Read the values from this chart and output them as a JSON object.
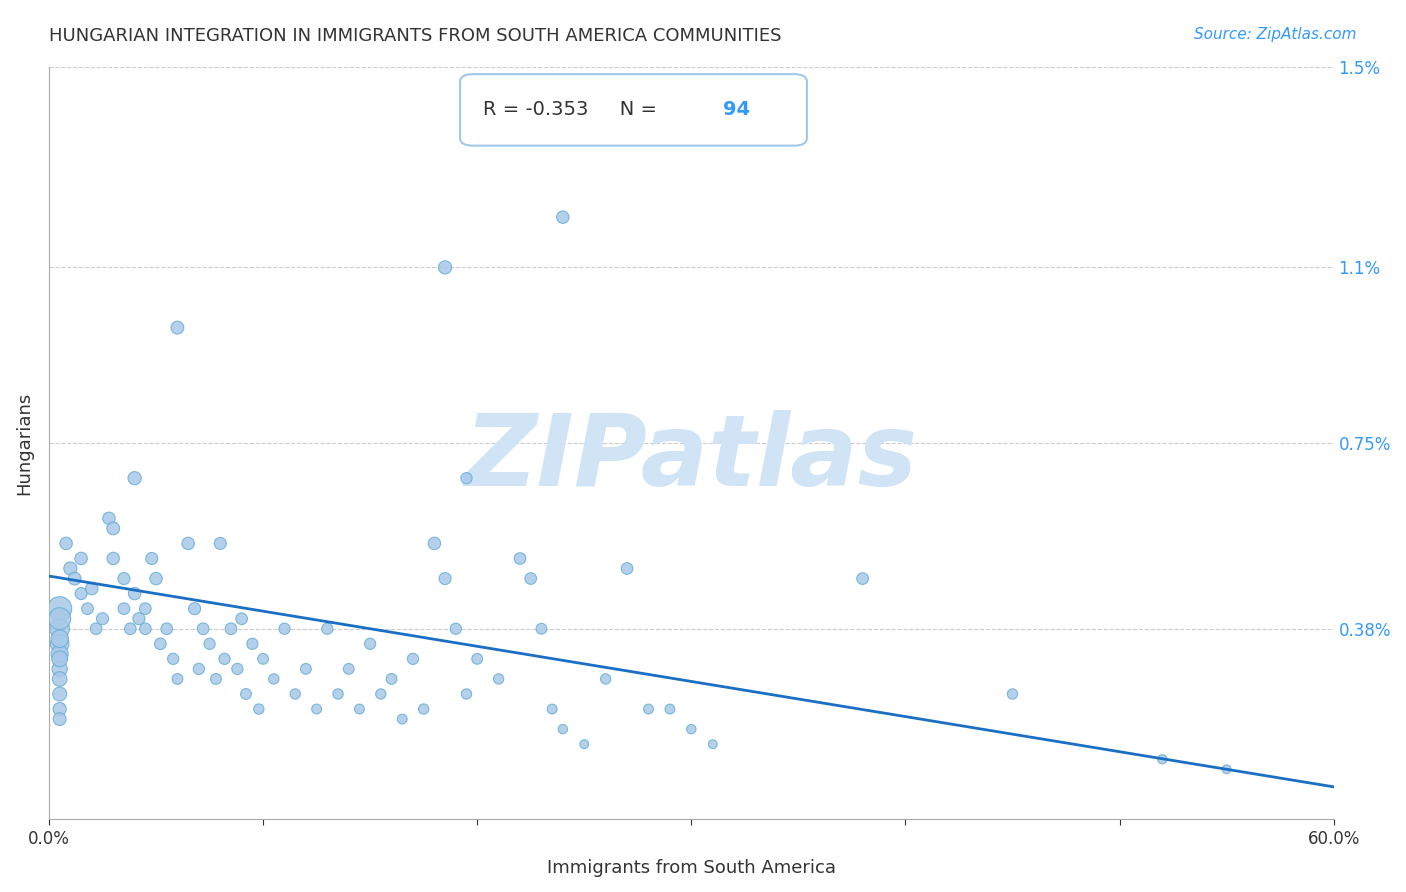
{
  "title": "HUNGARIAN INTEGRATION IN IMMIGRANTS FROM SOUTH AMERICA COMMUNITIES",
  "source": "Source: ZipAtlas.com",
  "xlabel": "Immigrants from South America",
  "ylabel": "Hungarians",
  "R": -0.353,
  "N": 94,
  "xlim": [
    0.0,
    0.6
  ],
  "ylim": [
    0.0,
    0.015
  ],
  "xticks": [
    0.0,
    0.1,
    0.2,
    0.3,
    0.4,
    0.5,
    0.6
  ],
  "xticklabels": [
    "0.0%",
    "",
    "",
    "",
    "",
    "",
    "60.0%"
  ],
  "yticks": [
    0.0,
    0.0038,
    0.0075,
    0.011,
    0.015
  ],
  "yticklabels": [
    "",
    "0.38%",
    "0.75%",
    "1.1%",
    "1.5%"
  ],
  "scatter_color": "#a8c8e8",
  "scatter_edge_color": "#6aaed6",
  "line_color": "#1a6fc4",
  "background_color": "#ffffff",
  "watermark_text": "ZIPatlas",
  "watermark_color": "#d0e4f5",
  "annotation_box_color": "#ffffff",
  "annotation_border_color": "#a0c0e0",
  "R_label_color": "#333333",
  "N_label_color": "#3399ff",
  "points": [
    [
      0.005,
      0.0042
    ],
    [
      0.005,
      0.0038
    ],
    [
      0.005,
      0.004
    ],
    [
      0.005,
      0.0035
    ],
    [
      0.005,
      0.0033
    ],
    [
      0.005,
      0.003
    ],
    [
      0.005,
      0.0028
    ],
    [
      0.005,
      0.0032
    ],
    [
      0.005,
      0.0036
    ],
    [
      0.005,
      0.0025
    ],
    [
      0.005,
      0.0022
    ],
    [
      0.005,
      0.002
    ],
    [
      0.008,
      0.0055
    ],
    [
      0.01,
      0.005
    ],
    [
      0.012,
      0.0048
    ],
    [
      0.015,
      0.0052
    ],
    [
      0.015,
      0.0045
    ],
    [
      0.018,
      0.0042
    ],
    [
      0.02,
      0.0046
    ],
    [
      0.022,
      0.0038
    ],
    [
      0.025,
      0.004
    ],
    [
      0.028,
      0.006
    ],
    [
      0.03,
      0.0058
    ],
    [
      0.03,
      0.0052
    ],
    [
      0.035,
      0.0048
    ],
    [
      0.035,
      0.0042
    ],
    [
      0.038,
      0.0038
    ],
    [
      0.04,
      0.0068
    ],
    [
      0.04,
      0.0045
    ],
    [
      0.042,
      0.004
    ],
    [
      0.045,
      0.0042
    ],
    [
      0.045,
      0.0038
    ],
    [
      0.048,
      0.0052
    ],
    [
      0.05,
      0.0048
    ],
    [
      0.052,
      0.0035
    ],
    [
      0.055,
      0.0038
    ],
    [
      0.058,
      0.0032
    ],
    [
      0.06,
      0.0028
    ],
    [
      0.065,
      0.0055
    ],
    [
      0.068,
      0.0042
    ],
    [
      0.07,
      0.003
    ],
    [
      0.072,
      0.0038
    ],
    [
      0.075,
      0.0035
    ],
    [
      0.078,
      0.0028
    ],
    [
      0.08,
      0.0055
    ],
    [
      0.082,
      0.0032
    ],
    [
      0.085,
      0.0038
    ],
    [
      0.088,
      0.003
    ],
    [
      0.09,
      0.004
    ],
    [
      0.092,
      0.0025
    ],
    [
      0.095,
      0.0035
    ],
    [
      0.098,
      0.0022
    ],
    [
      0.1,
      0.0032
    ],
    [
      0.105,
      0.0028
    ],
    [
      0.11,
      0.0038
    ],
    [
      0.115,
      0.0025
    ],
    [
      0.12,
      0.003
    ],
    [
      0.125,
      0.0022
    ],
    [
      0.13,
      0.0038
    ],
    [
      0.135,
      0.0025
    ],
    [
      0.14,
      0.003
    ],
    [
      0.145,
      0.0022
    ],
    [
      0.15,
      0.0035
    ],
    [
      0.155,
      0.0025
    ],
    [
      0.16,
      0.0028
    ],
    [
      0.165,
      0.002
    ],
    [
      0.17,
      0.0032
    ],
    [
      0.175,
      0.0022
    ],
    [
      0.18,
      0.0055
    ],
    [
      0.185,
      0.0048
    ],
    [
      0.19,
      0.0038
    ],
    [
      0.195,
      0.0025
    ],
    [
      0.2,
      0.0032
    ],
    [
      0.21,
      0.0028
    ],
    [
      0.22,
      0.0052
    ],
    [
      0.225,
      0.0048
    ],
    [
      0.23,
      0.0038
    ],
    [
      0.235,
      0.0022
    ],
    [
      0.24,
      0.0018
    ],
    [
      0.25,
      0.0015
    ],
    [
      0.26,
      0.0028
    ],
    [
      0.27,
      0.005
    ],
    [
      0.28,
      0.0022
    ],
    [
      0.185,
      0.011
    ],
    [
      0.06,
      0.0098
    ],
    [
      0.29,
      0.0022
    ],
    [
      0.3,
      0.0018
    ],
    [
      0.31,
      0.0015
    ],
    [
      0.38,
      0.0048
    ],
    [
      0.45,
      0.0025
    ],
    [
      0.52,
      0.0012
    ],
    [
      0.55,
      0.001
    ],
    [
      0.195,
      0.0068
    ],
    [
      0.24,
      0.012
    ]
  ],
  "point_sizes": [
    300,
    200,
    250,
    180,
    150,
    120,
    110,
    130,
    160,
    100,
    90,
    85,
    80,
    90,
    85,
    80,
    75,
    70,
    80,
    70,
    75,
    80,
    85,
    80,
    75,
    70,
    70,
    90,
    80,
    75,
    70,
    70,
    75,
    80,
    70,
    70,
    65,
    60,
    80,
    75,
    65,
    70,
    65,
    60,
    75,
    65,
    70,
    65,
    70,
    60,
    65,
    55,
    60,
    55,
    65,
    55,
    60,
    50,
    65,
    55,
    60,
    50,
    65,
    55,
    60,
    50,
    65,
    55,
    80,
    75,
    65,
    55,
    60,
    55,
    70,
    70,
    60,
    50,
    45,
    40,
    55,
    70,
    50,
    90,
    85,
    50,
    45,
    40,
    70,
    55,
    45,
    40,
    65,
    80
  ]
}
